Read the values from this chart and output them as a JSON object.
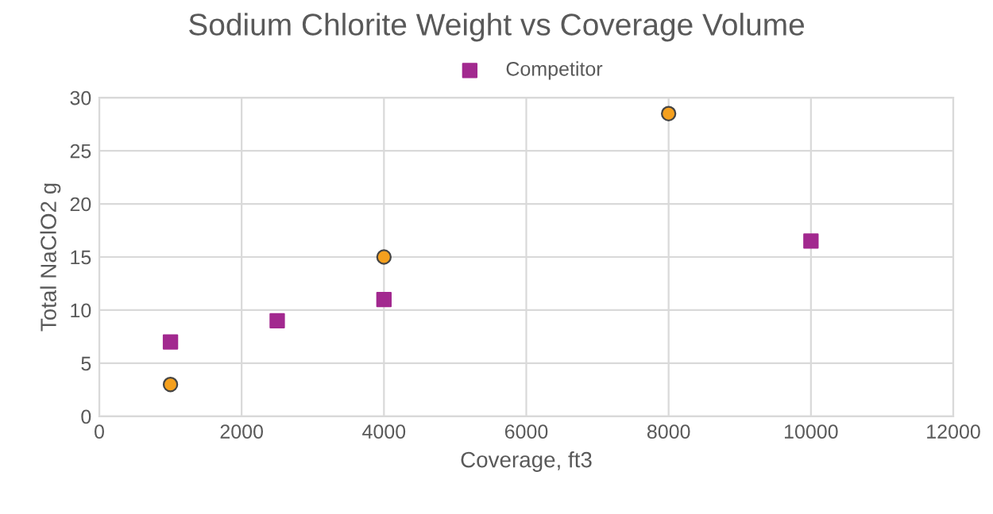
{
  "chart_data": {
    "type": "scatter",
    "title": "Sodium Chlorite Weight vs Coverage Volume",
    "xlabel": "Coverage, ft3",
    "ylabel": "Total NaClO2 g",
    "series": [
      {
        "color": "#f5a01e",
        "marker": "circle",
        "x": [
          1000,
          4000,
          8000
        ],
        "values": [
          3,
          15,
          28.5
        ]
      },
      {
        "name": "Competitor",
        "color": "#a2298f",
        "marker": "square",
        "x": [
          1000,
          2500,
          4000,
          10000
        ],
        "values": [
          7,
          9,
          11,
          16.5
        ]
      }
    ],
    "xlim": [
      0,
      12000
    ],
    "xticks": [
      0,
      2000,
      4000,
      6000,
      8000,
      10000,
      12000
    ],
    "ylim": [
      0,
      30
    ],
    "yticks": [
      0,
      5,
      10,
      15,
      20,
      25,
      30
    ],
    "grid": true,
    "legend": "top"
  }
}
